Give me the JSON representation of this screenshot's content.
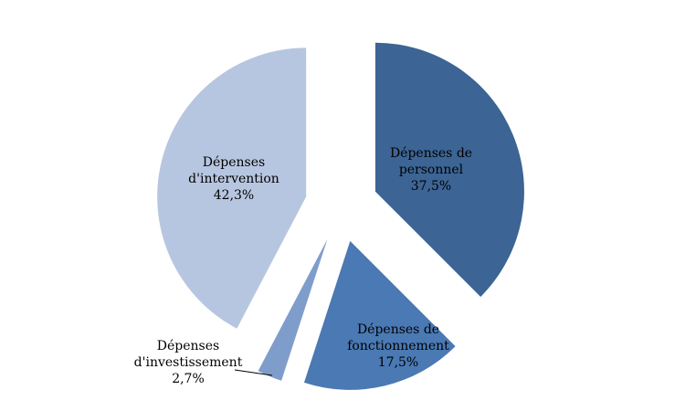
{
  "chart_data": {
    "type": "pie",
    "title": "",
    "exploded": true,
    "start_angle_deg": 0,
    "direction": "clockwise",
    "slices": [
      {
        "name": "Dépenses de personnel",
        "label_lines": [
          "Dépenses de",
          "personnel",
          "37,5%"
        ],
        "value": 37.5,
        "color": "#3C6494"
      },
      {
        "name": "Dépenses de fonctionnement",
        "label_lines": [
          "Dépenses de",
          "fonctionnement",
          "17,5%"
        ],
        "value": 17.5,
        "color": "#4A79B3"
      },
      {
        "name": "Dépenses d'investissement",
        "label_lines": [
          "Dépenses",
          "d'investissement",
          "2,7%"
        ],
        "value": 2.7,
        "color": "#7F9DCB"
      },
      {
        "name": "Dépenses d'intervention",
        "label_lines": [
          "Dépenses",
          "d'intervention",
          "42,3%"
        ],
        "value": 42.3,
        "color": "#B7C6E0"
      }
    ]
  }
}
